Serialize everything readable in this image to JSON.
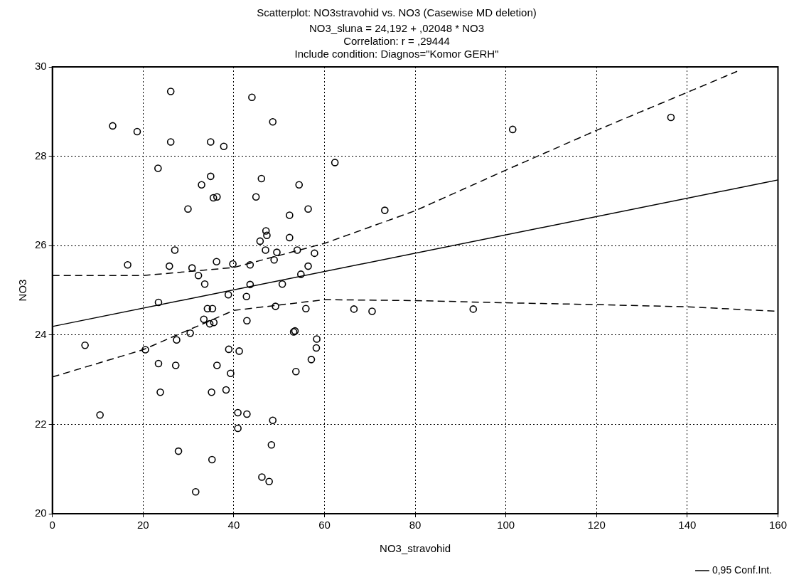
{
  "chart_data": {
    "type": "scatter",
    "title": "Scatterplot: NO3stravohid vs. NO3 (Casewise MD deletion)",
    "subtitle": "NO3_sluna = 24,192 + ,02048 * NO3",
    "annotations": [
      "Correlation: r = ,29444",
      "Include condition: Diagnos=\"Komor GERH\""
    ],
    "xlabel": "NO3_stravohid",
    "ylabel": "NO3",
    "xlim": [
      0,
      160
    ],
    "xticks": [
      0,
      20,
      40,
      60,
      80,
      100,
      120,
      140,
      160
    ],
    "ylim": [
      20,
      30
    ],
    "yticks": [
      20,
      22,
      24,
      26,
      28,
      30
    ],
    "grid": true,
    "legend": "bottom right",
    "marker": "circle",
    "series": [
      {
        "color": "#000000",
        "x": [
          26.1,
          44.0,
          48.6,
          13.3,
          18.7,
          26.1,
          34.9,
          37.8,
          62.3,
          23.3,
          34.9,
          32.9,
          46.1,
          54.4,
          35.5,
          36.3,
          44.9,
          29.9,
          56.4,
          52.3,
          47.1,
          47.3,
          45.8,
          52.3,
          47.0,
          27.0,
          49.5,
          54.0,
          57.8,
          48.9,
          16.6,
          25.8,
          30.8,
          36.2,
          39.8,
          43.6,
          56.4,
          54.8,
          32.2,
          33.6,
          50.7,
          43.6,
          38.8,
          42.8,
          23.4,
          34.2,
          35.3,
          49.2,
          55.9,
          42.9,
          33.4,
          34.7,
          35.6,
          53.5,
          53.2,
          30.4,
          27.4,
          58.3,
          7.2,
          20.5,
          38.9,
          41.2,
          58.2,
          57.1,
          23.4,
          27.2,
          36.3,
          39.3,
          53.7,
          23.8,
          35.1,
          38.3,
          10.5,
          40.9,
          42.9,
          40.9,
          48.6,
          48.3,
          27.8,
          35.2,
          46.2,
          47.8,
          31.6,
          73.3,
          101.5,
          136.4,
          66.5,
          70.5,
          92.8
        ],
        "values": [
          29.45,
          29.32,
          28.77,
          28.68,
          28.55,
          28.32,
          28.32,
          28.22,
          27.86,
          27.73,
          27.55,
          27.36,
          27.5,
          27.36,
          27.07,
          27.09,
          27.09,
          26.82,
          26.82,
          26.68,
          26.33,
          26.23,
          26.1,
          26.18,
          25.9,
          25.9,
          25.85,
          25.9,
          25.83,
          25.68,
          25.57,
          25.54,
          25.5,
          25.64,
          25.59,
          25.57,
          25.54,
          25.36,
          25.33,
          25.14,
          25.14,
          25.13,
          24.9,
          24.86,
          24.73,
          24.59,
          24.59,
          24.64,
          24.59,
          24.32,
          24.35,
          24.25,
          24.28,
          24.09,
          24.07,
          24.04,
          23.89,
          23.91,
          23.77,
          23.67,
          23.68,
          23.64,
          23.71,
          23.45,
          23.36,
          23.32,
          23.32,
          23.14,
          23.18,
          22.72,
          22.72,
          22.77,
          22.21,
          22.26,
          22.23,
          21.91,
          22.09,
          21.54,
          21.4,
          21.21,
          20.82,
          20.72,
          20.49,
          26.79,
          28.6,
          28.87,
          24.58,
          24.53,
          24.58
        ]
      },
      {
        "type": "line",
        "color": "#000000",
        "line_style": "solid",
        "marker": "none",
        "x": [
          0,
          160
        ],
        "values": [
          24.19,
          27.47
        ]
      },
      {
        "type": "line",
        "name": "0,95 Conf.Int.",
        "color": "#000000",
        "line_style": "dashed",
        "marker": "none",
        "x": [
          0,
          20,
          40,
          60,
          80,
          100,
          120,
          140,
          151
        ],
        "values": [
          25.33,
          25.33,
          25.51,
          26.05,
          26.78,
          27.69,
          28.58,
          29.43,
          29.9
        ]
      },
      {
        "type": "line",
        "color": "#000000",
        "line_style": "dashed",
        "marker": "none",
        "x": [
          0,
          20,
          40,
          60,
          80,
          100,
          120,
          140,
          160
        ],
        "values": [
          23.06,
          23.67,
          24.55,
          24.79,
          24.77,
          24.72,
          24.68,
          24.63,
          24.53
        ]
      }
    ]
  }
}
